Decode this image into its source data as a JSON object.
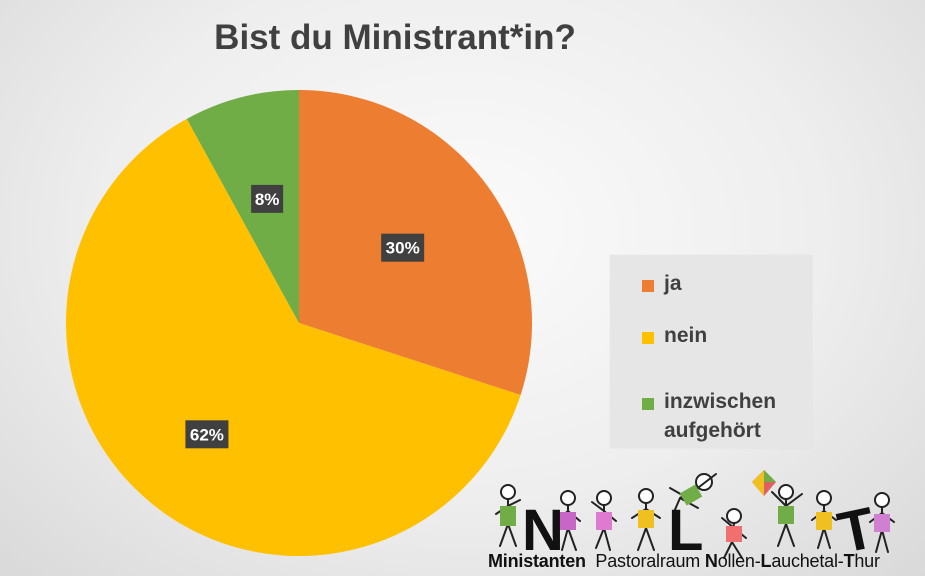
{
  "title": "Bist du Ministrant*in?",
  "chart_data": {
    "type": "pie",
    "title": "Bist du Ministrant*in?",
    "categories": [
      "ja",
      "nein",
      "inzwischen aufgehört"
    ],
    "values": [
      30,
      62,
      8
    ],
    "labels": [
      "30%",
      "62%",
      "8%"
    ],
    "colors": [
      "#ED7D31",
      "#FFC000",
      "#70AD47"
    ],
    "legend": "right",
    "start_angle": "12 o'clock, clockwise"
  },
  "legend": {
    "items": [
      {
        "label": "ja",
        "color": "#ED7D31"
      },
      {
        "label": "nein",
        "color": "#FFC000"
      },
      {
        "label": "inzwischen aufgehört",
        "color": "#70AD47"
      }
    ]
  },
  "logo": {
    "letters": [
      "N",
      "L",
      "T"
    ],
    "parts": [
      "M",
      "inistanten",
      "Pastoralraum",
      "N",
      "ollen-",
      "L",
      "auchetal-",
      "T",
      "hur"
    ]
  }
}
